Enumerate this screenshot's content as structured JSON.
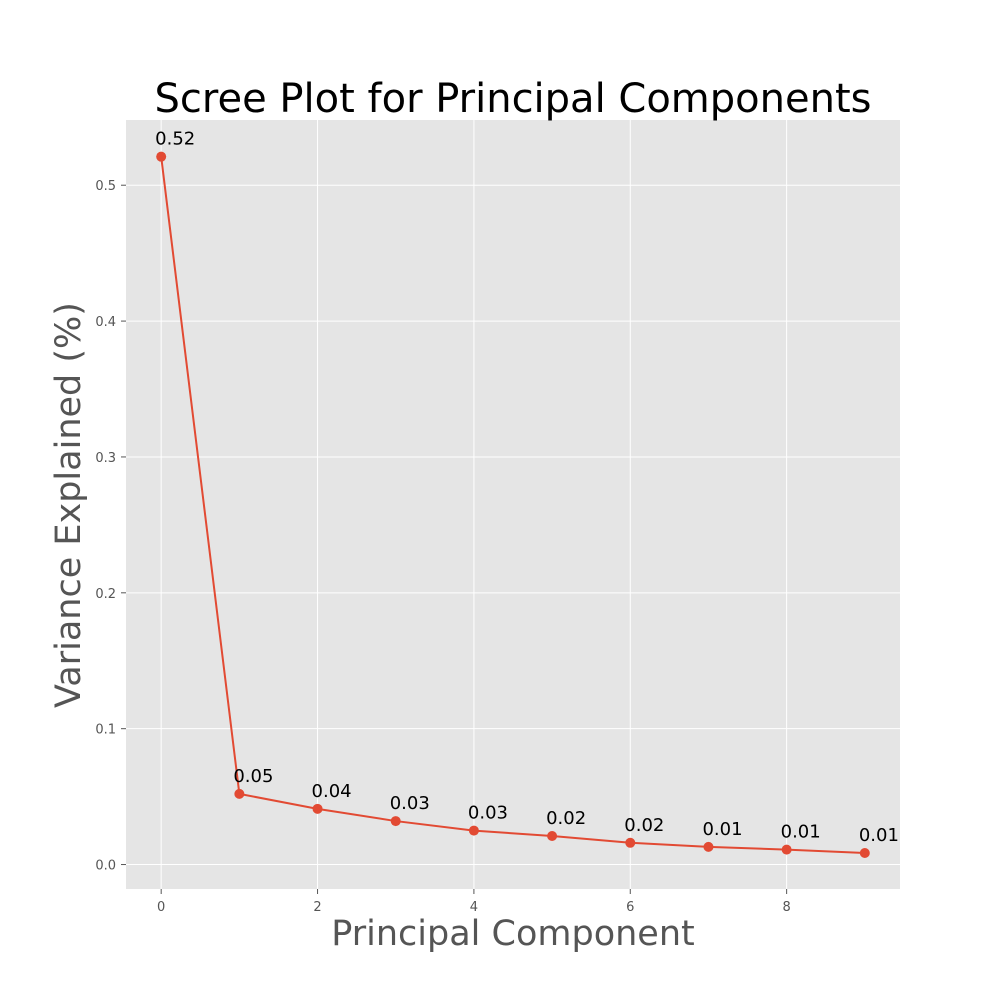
{
  "chart_data": {
    "type": "line",
    "title": "Scree Plot for Principal Components",
    "xlabel": "Principal Component",
    "ylabel": "Variance Explained (%)",
    "x": [
      0,
      1,
      2,
      3,
      4,
      5,
      6,
      7,
      8,
      9
    ],
    "series": [
      {
        "values": [
          0.521,
          0.052,
          0.041,
          0.032,
          0.025,
          0.021,
          0.016,
          0.013,
          0.011,
          0.0085
        ]
      }
    ],
    "data_labels": [
      "0.52",
      "0.05",
      "0.04",
      "0.03",
      "0.03",
      "0.02",
      "0.02",
      "0.01",
      "0.01",
      "0.01"
    ],
    "xlim": [
      -0.45,
      9.45
    ],
    "ylim": [
      -0.018,
      0.548
    ],
    "x_ticks": [
      0,
      2,
      4,
      6,
      8
    ],
    "x_tick_labels": [
      "0",
      "2",
      "4",
      "6",
      "8"
    ],
    "y_ticks": [
      0.0,
      0.1,
      0.2,
      0.3,
      0.4,
      0.5
    ],
    "y_tick_labels": [
      "0.0",
      "0.1",
      "0.2",
      "0.3",
      "0.4",
      "0.5"
    ],
    "grid": true,
    "colors": {
      "line": "#e24a33",
      "plot_background": "#e5e5e5",
      "grid": "#ffffff"
    }
  }
}
